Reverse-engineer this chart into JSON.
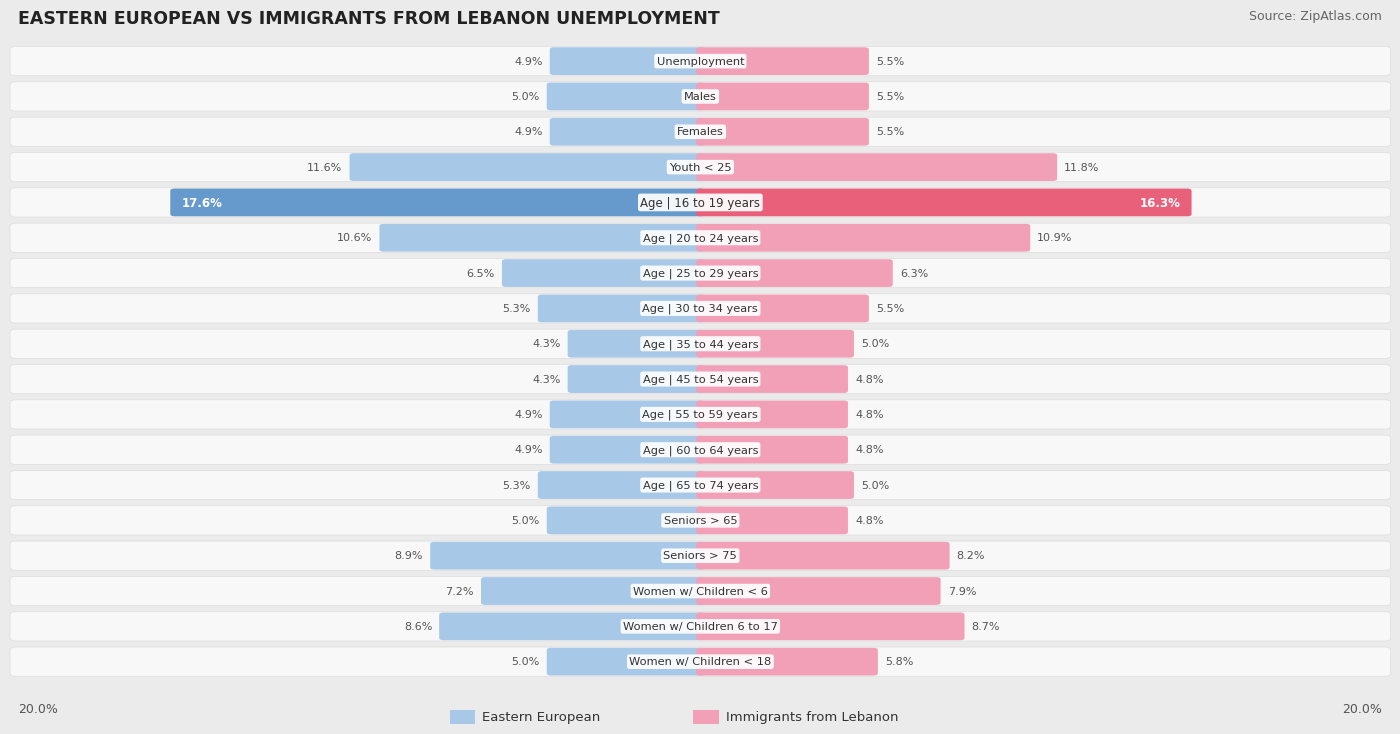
{
  "title": "EASTERN EUROPEAN VS IMMIGRANTS FROM LEBANON UNEMPLOYMENT",
  "source": "Source: ZipAtlas.com",
  "categories": [
    "Unemployment",
    "Males",
    "Females",
    "Youth < 25",
    "Age | 16 to 19 years",
    "Age | 20 to 24 years",
    "Age | 25 to 29 years",
    "Age | 30 to 34 years",
    "Age | 35 to 44 years",
    "Age | 45 to 54 years",
    "Age | 55 to 59 years",
    "Age | 60 to 64 years",
    "Age | 65 to 74 years",
    "Seniors > 65",
    "Seniors > 75",
    "Women w/ Children < 6",
    "Women w/ Children 6 to 17",
    "Women w/ Children < 18"
  ],
  "eastern_european": [
    4.9,
    5.0,
    4.9,
    11.6,
    17.6,
    10.6,
    6.5,
    5.3,
    4.3,
    4.3,
    4.9,
    4.9,
    5.3,
    5.0,
    8.9,
    7.2,
    8.6,
    5.0
  ],
  "lebanon": [
    5.5,
    5.5,
    5.5,
    11.8,
    16.3,
    10.9,
    6.3,
    5.5,
    5.0,
    4.8,
    4.8,
    4.8,
    5.0,
    4.8,
    8.2,
    7.9,
    8.7,
    5.8
  ],
  "color_eastern": "#a8c8e8",
  "color_lebanon": "#f2a0b8",
  "color_eastern_highlight": "#6699cc",
  "color_lebanon_highlight": "#e8607a",
  "background_color": "#ebebeb",
  "row_bg_color": "#f8f8f8",
  "row_border_color": "#dddddd",
  "max_value": 20.0,
  "legend_eastern": "Eastern European",
  "legend_lebanon": "Immigrants from Lebanon",
  "highlight_idx": 4
}
